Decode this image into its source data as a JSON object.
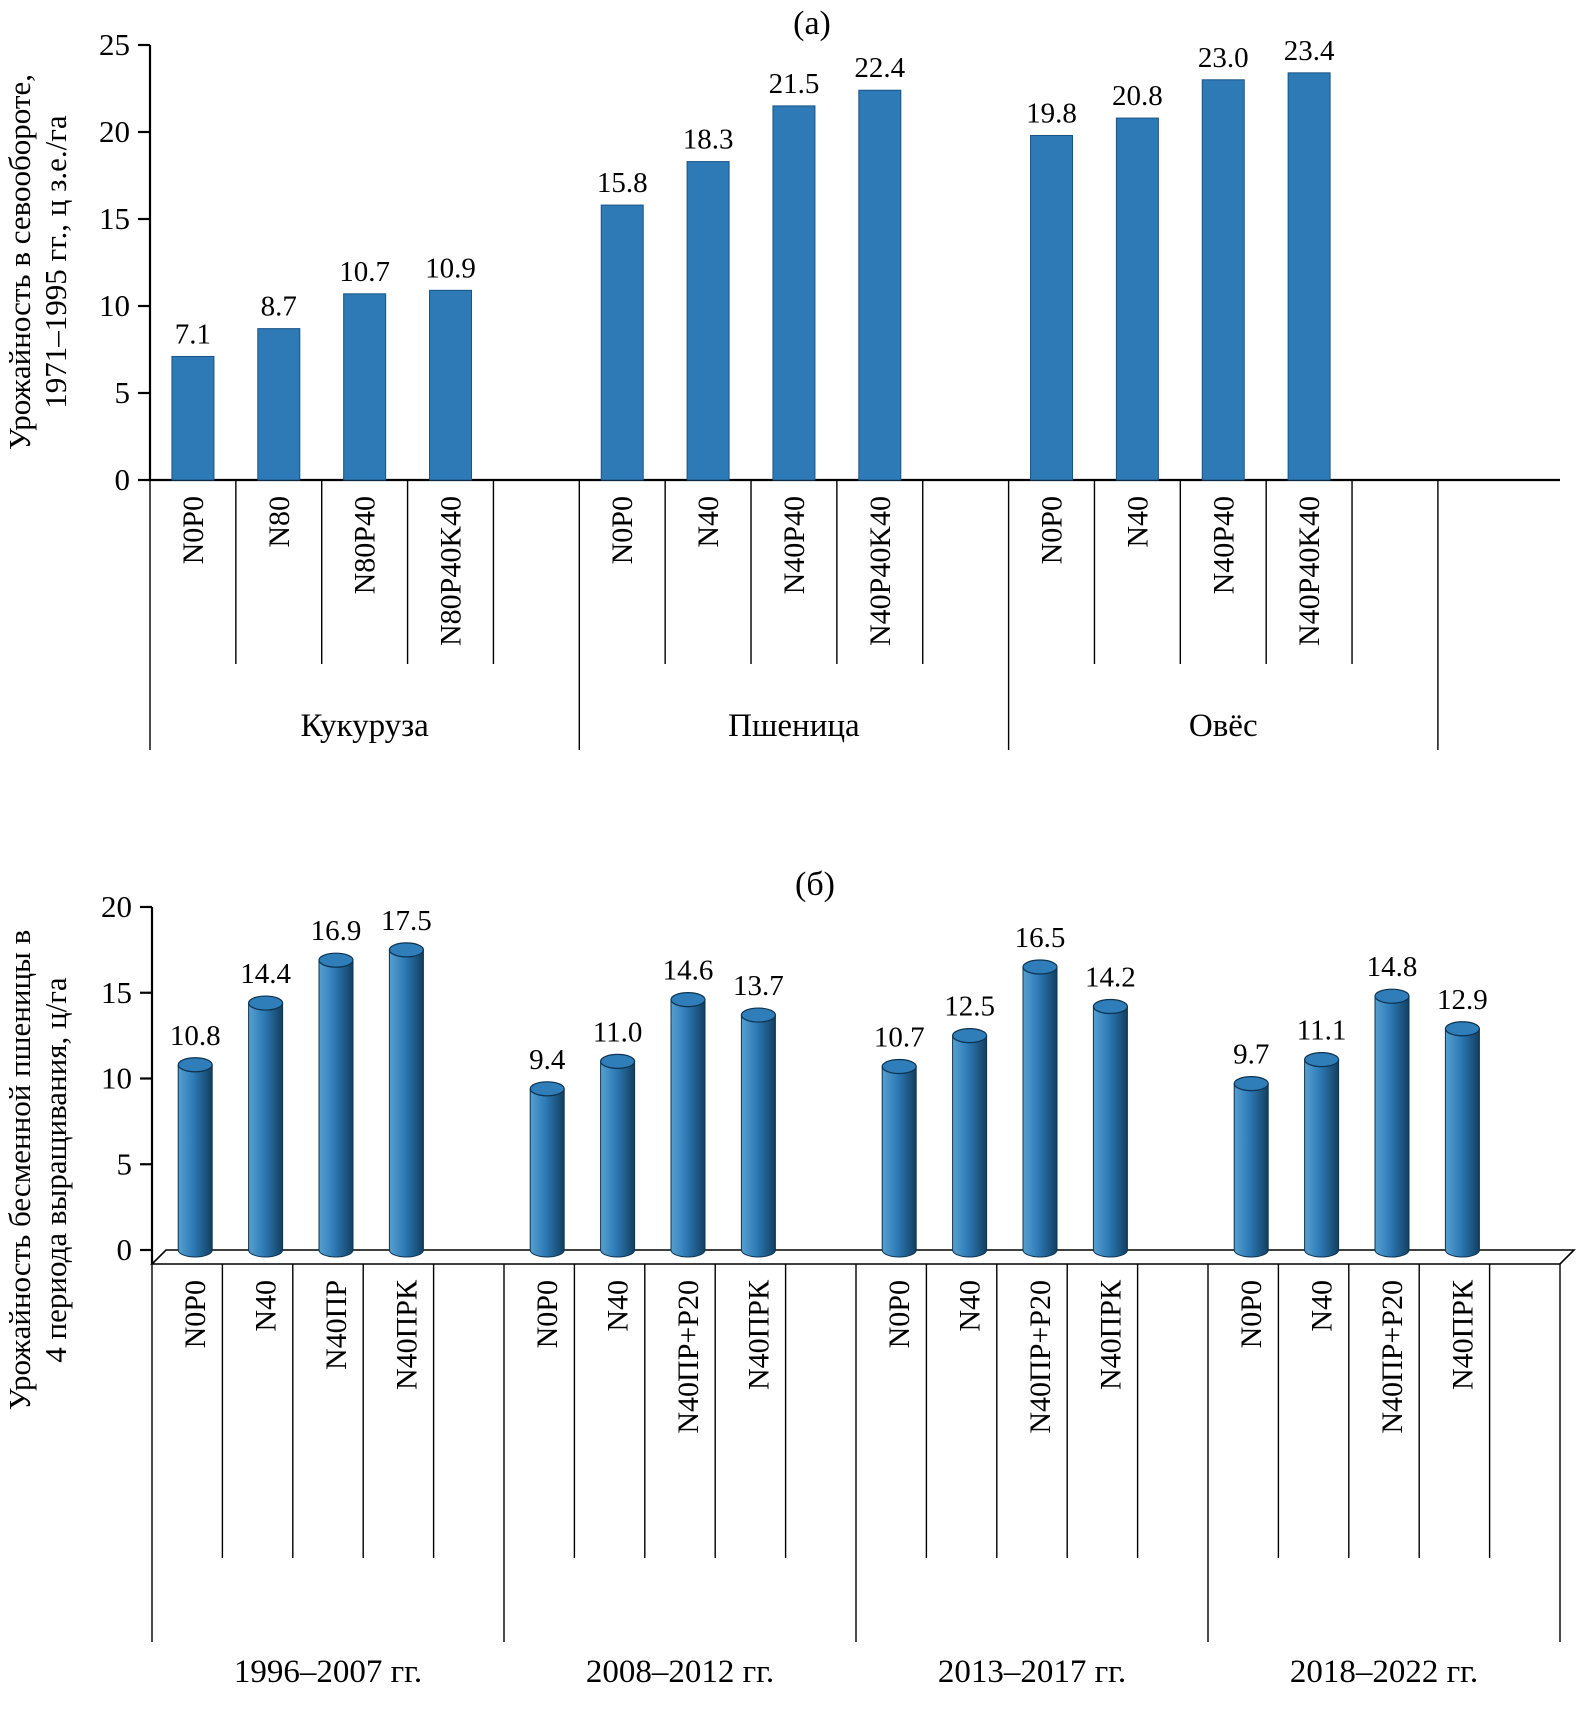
{
  "figure": {
    "description": "Two-panel bar chart figure on crop yields",
    "panel_labels": [
      "(а)",
      "(б)"
    ]
  },
  "colors": {
    "bar_fill": "#2D7AB6",
    "bar_stroke": "#1A5385",
    "cyl_light": "#57A0CF",
    "cyl_mid": "#2D7AB6",
    "cyl_dark": "#123F60",
    "cyl_top_fill": "#2F7DB9",
    "cyl_top_stroke": "#0E3350",
    "axis_color": "#000000"
  },
  "chart_data": [
    {
      "type": "bar",
      "bar_style": "flat",
      "panel_label": "(а)",
      "ylabel_lines": [
        "Урожайность в севообороте,",
        "1971–1995 гг., ц з.е./га"
      ],
      "ylim": [
        0,
        25
      ],
      "yticks": [
        0,
        5,
        10,
        15,
        20,
        25
      ],
      "grid": false,
      "legend": "none",
      "value_label_format": "0.0",
      "groups": [
        {
          "label": "Кукуруза",
          "categories": [
            "N0P0",
            "N80",
            "N80P40",
            "N80P40K40"
          ],
          "values": [
            7.1,
            8.7,
            10.7,
            10.9
          ]
        },
        {
          "label": "Пшеница",
          "categories": [
            "N0P0",
            "N40",
            "N40P40",
            "N40P40K40"
          ],
          "values": [
            15.8,
            18.3,
            21.5,
            22.4
          ]
        },
        {
          "label": "Овёс",
          "categories": [
            "N0P0",
            "N40",
            "N40P40",
            "N40P40K40"
          ],
          "values": [
            19.8,
            20.8,
            23.0,
            23.4
          ]
        }
      ]
    },
    {
      "type": "bar",
      "bar_style": "cylinder-3d",
      "panel_label": "(б)",
      "ylabel_lines": [
        "Урожайность бесменной пшеницы в",
        "4 периода выращивания, ц/га"
      ],
      "ylim": [
        0,
        20
      ],
      "yticks": [
        0,
        5,
        10,
        15,
        20
      ],
      "grid": false,
      "legend": "none",
      "value_label_format": "0.0",
      "groups": [
        {
          "label": "1996–2007 гг.",
          "categories": [
            "N0P0",
            "N40",
            "N40ПР",
            "N40ПРК"
          ],
          "values": [
            10.8,
            14.4,
            16.9,
            17.5
          ]
        },
        {
          "label": "2008–2012 гг.",
          "categories": [
            "N0P0",
            "N40",
            "N40ПР+Р20",
            "N40ПРК"
          ],
          "values": [
            9.4,
            11.0,
            14.6,
            13.7
          ]
        },
        {
          "label": "2013–2017 гг.",
          "categories": [
            "N0P0",
            "N40",
            "N40ПР+Р20",
            "N40ПРК"
          ],
          "values": [
            10.7,
            12.5,
            16.5,
            14.2
          ]
        },
        {
          "label": "2018–2022 гг.",
          "categories": [
            "N0P0",
            "N40",
            "N40ПР+Р20",
            "N40ПРК"
          ],
          "values": [
            9.7,
            11.1,
            14.8,
            12.9
          ]
        }
      ]
    }
  ]
}
